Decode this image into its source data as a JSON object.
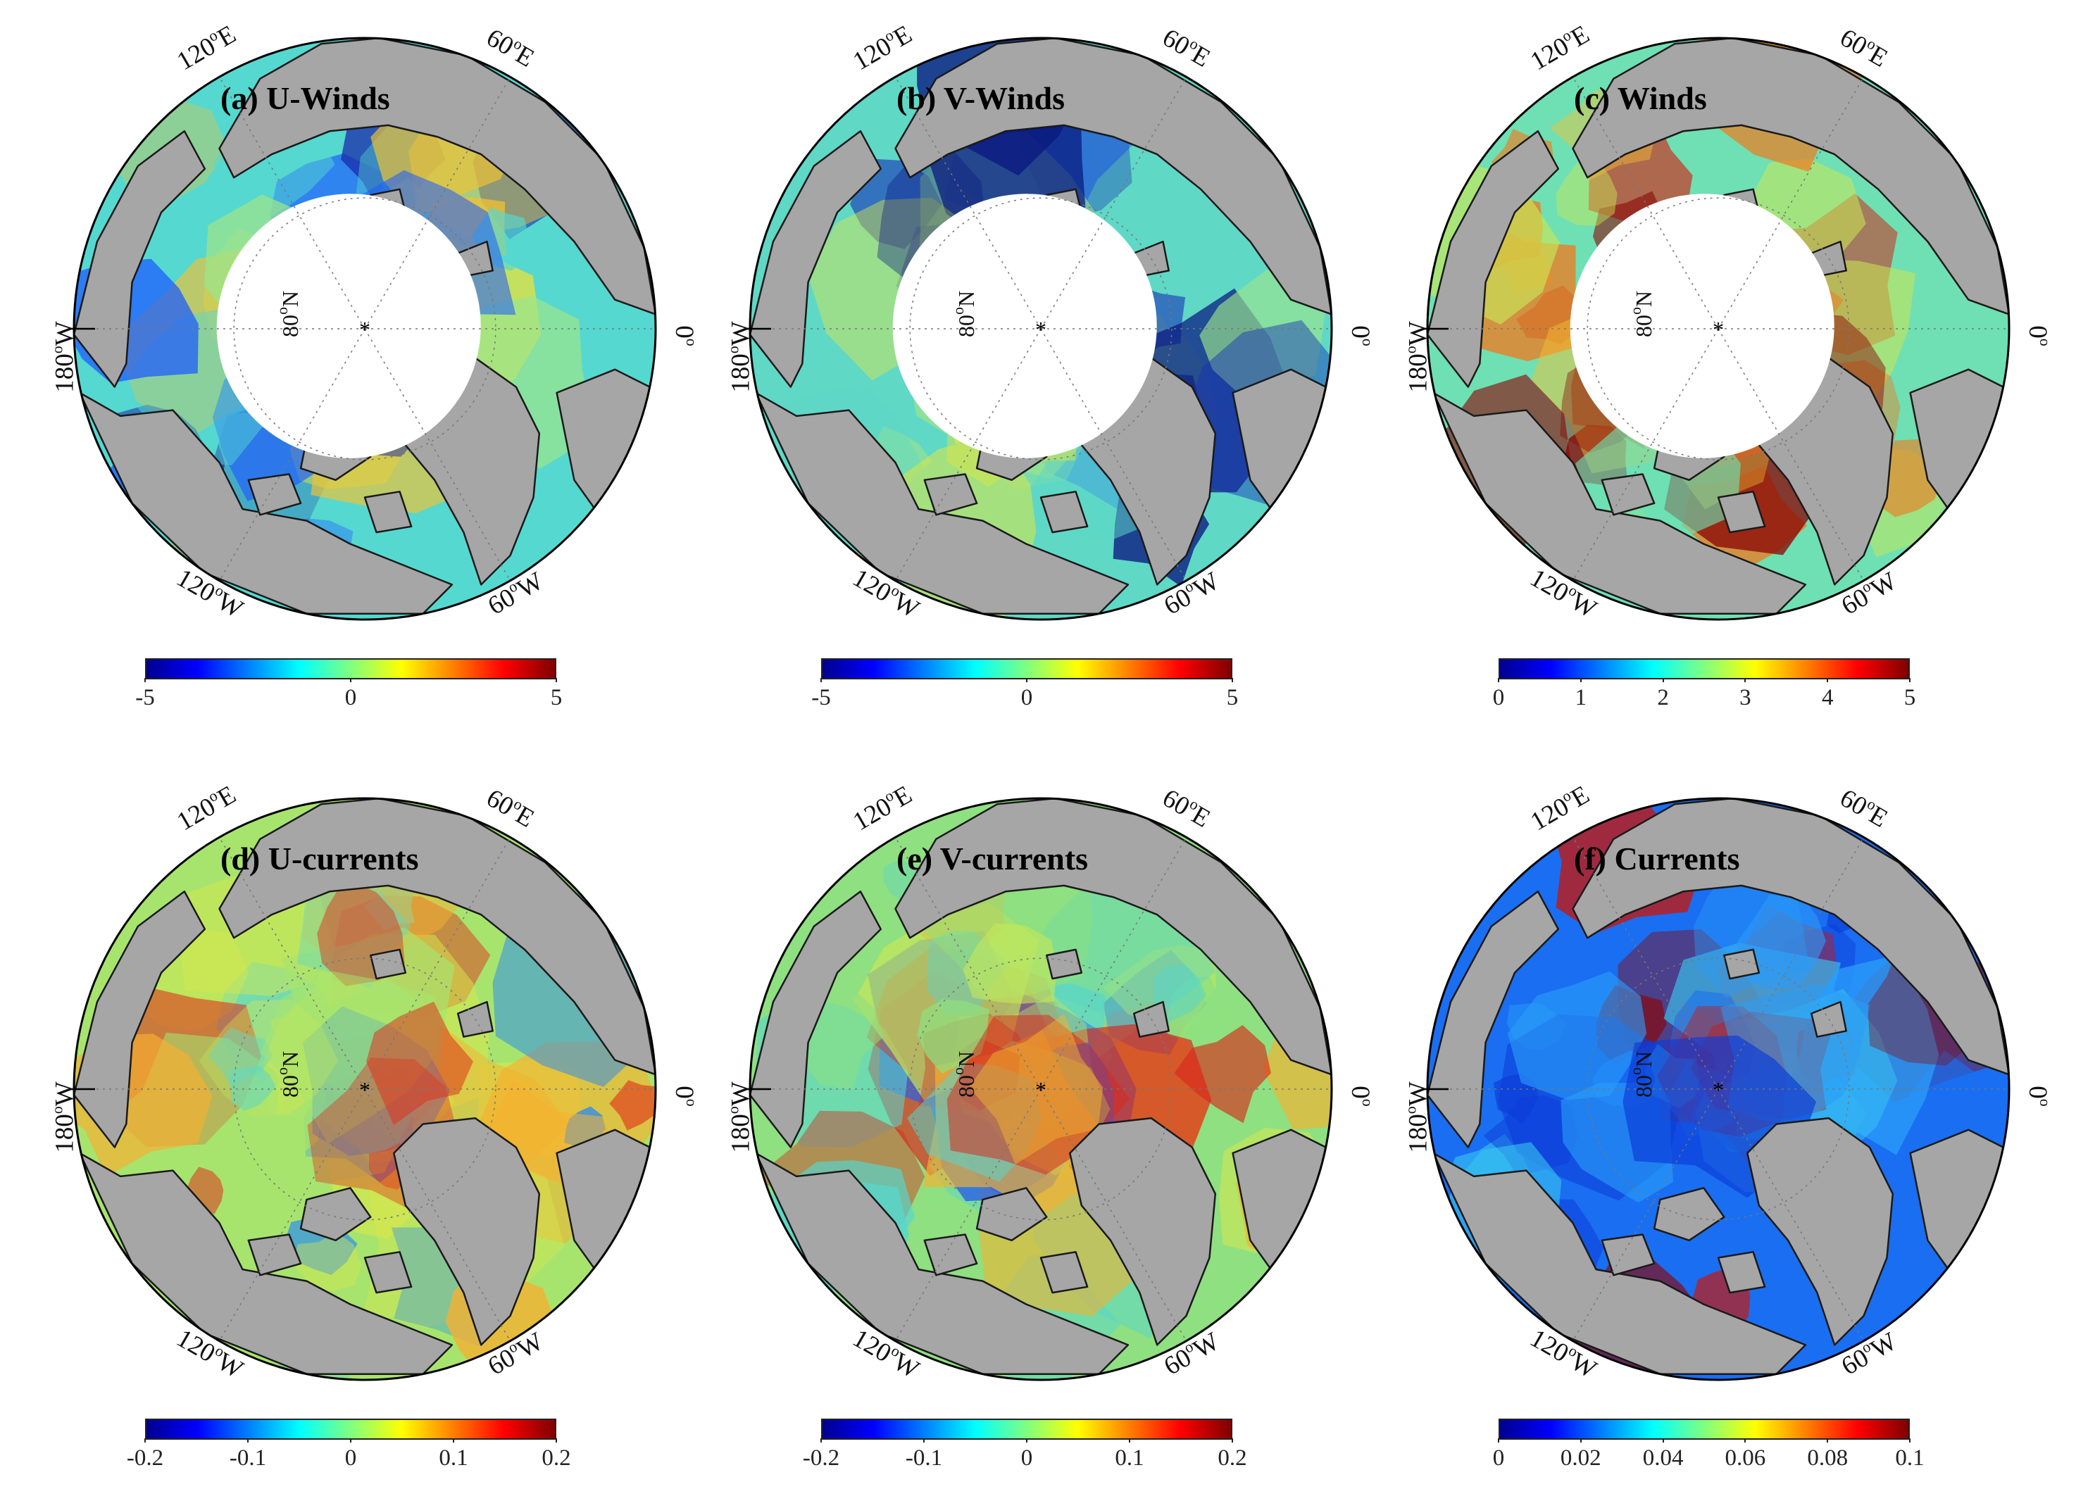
{
  "panels": [
    {
      "title": "(a) U-Winds",
      "colormap": "jet",
      "pole_hole": true,
      "colorbar": {
        "min": -5,
        "max": 5,
        "ticks": [
          "-5",
          "0",
          "5"
        ]
      },
      "field_colors": [
        "#55d8d0",
        "#9be48c",
        "#e2e240",
        "#f2c232",
        "#1e5cff",
        "#1a2aa8"
      ]
    },
    {
      "title": "(b) V-Winds",
      "colormap": "jet",
      "pole_hole": true,
      "colorbar": {
        "min": -5,
        "max": 5,
        "ticks": [
          "-5",
          "0",
          "5"
        ]
      },
      "field_colors": [
        "#5fd8c6",
        "#9ae38d",
        "#d8e54a",
        "#2a7df0",
        "#1630b8",
        "#0a1880"
      ]
    },
    {
      "title": "(c) Winds",
      "colormap": "jet",
      "pole_hole": true,
      "colorbar": {
        "min": 0,
        "max": 5,
        "ticks": [
          "0",
          "1",
          "2",
          "3",
          "4",
          "5"
        ]
      },
      "field_colors": [
        "#6ee0b4",
        "#c8e656",
        "#f4c034",
        "#f07a1e",
        "#d41e10",
        "#8a0606"
      ]
    },
    {
      "title": "(d) U-currents",
      "colormap": "jet",
      "pole_hole": false,
      "colorbar": {
        "min": -0.2,
        "max": 0.2,
        "ticks": [
          "-0.2",
          "-0.1",
          "0",
          "0.1",
          "0.2"
        ]
      },
      "field_colors": [
        "#a7e46e",
        "#d9e84a",
        "#62d8c2",
        "#f6b030",
        "#e0321c",
        "#2c8cf0"
      ]
    },
    {
      "title": "(e) V-currents",
      "colormap": "jet",
      "pole_hole": false,
      "colorbar": {
        "min": -0.2,
        "max": 0.2,
        "ticks": [
          "-0.2",
          "-0.1",
          "0",
          "0.1",
          "0.2"
        ]
      },
      "field_colors": [
        "#8fe080",
        "#c6e658",
        "#56d6ce",
        "#f0b232",
        "#d8281a",
        "#2a60e8"
      ]
    },
    {
      "title": "(f) Currents",
      "colormap": "jet",
      "pole_hole": false,
      "colorbar": {
        "min": 0,
        "max": 0.1,
        "ticks": [
          "0",
          "0.02",
          "0.04",
          "0.06",
          "0.08",
          "0.1"
        ]
      },
      "field_colors": [
        "#1a6ef2",
        "#2a9cf8",
        "#0c3cd8",
        "#c41810",
        "#8a0606",
        "#38c4f0"
      ]
    }
  ],
  "graticule": {
    "lon_labels": [
      "120",
      "60",
      "180",
      "0",
      "120",
      "60"
    ],
    "lon_suffix": [
      "E",
      "E",
      "W",
      "",
      "W",
      "W"
    ],
    "lat_label_text": "80",
    "lat_label_suffix": "N",
    "degree_mark": "o"
  },
  "colors": {
    "land": "#a6a6a6",
    "coast": "#1a1a1a",
    "jet": [
      "#00008f",
      "#0000ff",
      "#0080ff",
      "#00ffff",
      "#80ff80",
      "#ffff00",
      "#ff8000",
      "#ff0000",
      "#800000"
    ]
  }
}
